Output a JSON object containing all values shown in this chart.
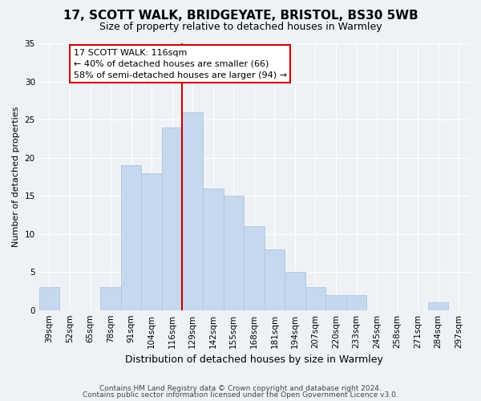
{
  "title": "17, SCOTT WALK, BRIDGEYATE, BRISTOL, BS30 5WB",
  "subtitle": "Size of property relative to detached houses in Warmley",
  "xlabel": "Distribution of detached houses by size in Warmley",
  "ylabel": "Number of detached properties",
  "footer_lines": [
    "Contains HM Land Registry data © Crown copyright and database right 2024.",
    "Contains public sector information licensed under the Open Government Licence v3.0."
  ],
  "bin_labels": [
    "39sqm",
    "52sqm",
    "65sqm",
    "78sqm",
    "91sqm",
    "104sqm",
    "116sqm",
    "129sqm",
    "142sqm",
    "155sqm",
    "168sqm",
    "181sqm",
    "194sqm",
    "207sqm",
    "220sqm",
    "233sqm",
    "245sqm",
    "258sqm",
    "271sqm",
    "284sqm",
    "297sqm"
  ],
  "bar_values": [
    3,
    0,
    0,
    3,
    19,
    18,
    24,
    26,
    16,
    15,
    11,
    8,
    5,
    3,
    2,
    2,
    0,
    0,
    0,
    1,
    0
  ],
  "bar_color": "#c5d8ed",
  "bar_edge_color": "#aec6de",
  "highlight_index": 6,
  "highlight_line_color": "#cc0000",
  "ylim": [
    0,
    35
  ],
  "yticks": [
    0,
    5,
    10,
    15,
    20,
    25,
    30,
    35
  ],
  "annotation_line1": "17 SCOTT WALK: 116sqm",
  "annotation_line2": "← 40% of detached houses are smaller (66)",
  "annotation_line3": "58% of semi-detached houses are larger (94) →",
  "annotation_box_color": "#ffffff",
  "annotation_box_edge": "#cc0000",
  "background_color": "#eef2f7",
  "grid_color": "#ffffff",
  "title_fontsize": 11,
  "subtitle_fontsize": 9,
  "ylabel_fontsize": 8,
  "xlabel_fontsize": 9,
  "tick_fontsize": 7.5,
  "footer_fontsize": 6.5
}
